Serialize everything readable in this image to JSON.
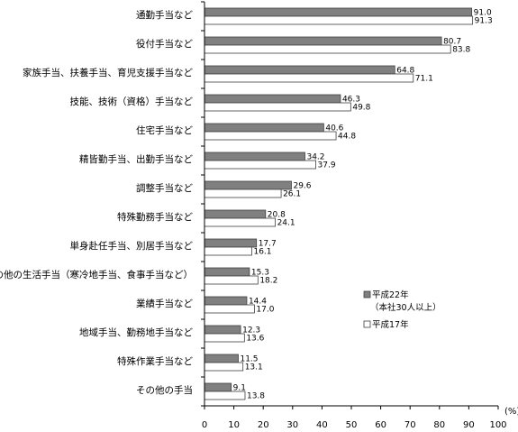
{
  "chart_data": {
    "type": "bar",
    "orientation": "horizontal",
    "categories": [
      "通勤手当など",
      "役付手当など",
      "家族手当、扶養手当、育児支援手当など",
      "技能、技術（資格）手当など",
      "住宅手当など",
      "精皆勤手当、出勤手当など",
      "調整手当など",
      "特殊勤務手当など",
      "単身赴任手当、別居手当など",
      "その他の生活手当（寒冷地手当、食事手当など）",
      "業績手当など",
      "地域手当、勤務地手当など",
      "特殊作業手当など",
      "その他の手当"
    ],
    "series": [
      {
        "name": "平成22年",
        "name_sub": "（本社30人以上）",
        "color": "#808080",
        "values": [
          91.0,
          80.7,
          64.8,
          46.3,
          40.6,
          34.2,
          29.6,
          20.8,
          17.7,
          15.3,
          14.4,
          12.3,
          11.5,
          9.1
        ],
        "labels": [
          "91.0",
          "80.7",
          "64.8",
          "46.3",
          "40.6",
          "34.2",
          "29.6",
          "20.8",
          "17.7",
          "15.3",
          "14.4",
          "12.3",
          "11.5",
          "9.1"
        ]
      },
      {
        "name": "平成17年",
        "color": "#ffffff",
        "values": [
          91.3,
          83.8,
          71.1,
          49.8,
          44.8,
          37.9,
          26.1,
          24.1,
          16.1,
          18.2,
          17.0,
          13.6,
          13.1,
          13.8
        ],
        "labels": [
          "91.3",
          "83.8",
          "71.1",
          "49.8",
          "44.8",
          "37.9",
          "26.1",
          "24.1",
          "16.1",
          "18.2",
          "17.0",
          "13.6",
          "13.1",
          "13.8"
        ]
      }
    ],
    "xlim": [
      0,
      100
    ],
    "xticks": [
      0,
      10,
      20,
      30,
      40,
      50,
      60,
      70,
      80,
      90,
      100
    ],
    "unit": "(%)",
    "legend_position": "right"
  }
}
